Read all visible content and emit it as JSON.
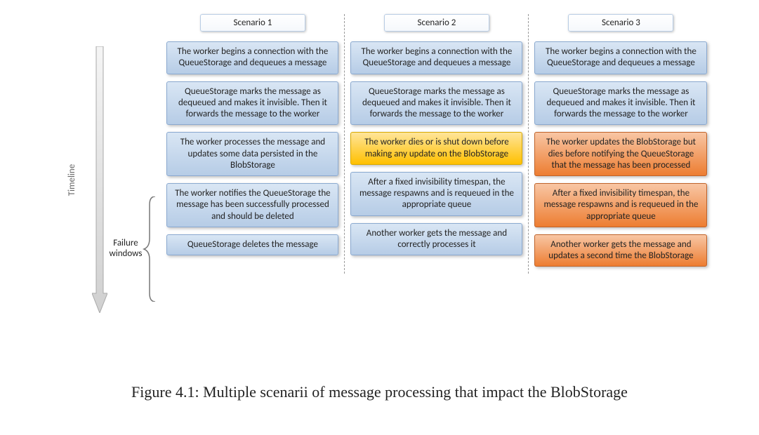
{
  "type": "flowchart",
  "timeline_label": "Timeline",
  "failure_label_line1": "Failure",
  "failure_label_line2": "windows",
  "caption": "Figure 4.1: Multiple scenarii of message processing that impact the BlobStorage",
  "font_family": "Segoe UI",
  "step_fontsize": 13,
  "caption_fontsize": 22,
  "arrow_color": "#d0d0d0",
  "arrow_stroke": "#a8a8a8",
  "divider_color": "#999999",
  "box_shadow": "2px 2px 4px rgba(0,0,0,0.25)",
  "colors": {
    "blue_top": "#d9e6f4",
    "blue_bottom": "#b6cce6",
    "blue_border": "#8aa9d0",
    "yellow_top": "#ffe59a",
    "yellow_bottom": "#ffc000",
    "yellow_border": "#d8a900",
    "orange_top": "#f8c6a4",
    "orange_bottom": "#ed7d31",
    "orange_border": "#c0632a",
    "header_bg_top": "#ffffff",
    "header_bg_bottom": "#f5f8fc",
    "header_border": "#b9cde5"
  },
  "columns": [
    {
      "header": "Scenario 1",
      "steps": [
        {
          "text": "The worker begins a connection with the QueueStorage and dequeues a message",
          "style": "blue"
        },
        {
          "text": "QueueStorage marks the message as dequeued and makes it invisible. Then it forwards the message to the worker",
          "style": "blue"
        },
        {
          "text": "The worker processes the message and updates some data persisted in the BlobStorage",
          "style": "blue"
        },
        {
          "text": "The worker notifies the QueueStorage the message has been successfully processed and should be deleted",
          "style": "blue"
        },
        {
          "text": "QueueStorage deletes the message",
          "style": "blue"
        }
      ]
    },
    {
      "header": "Scenario 2",
      "steps": [
        {
          "text": "The worker begins a connection with the QueueStorage and dequeues a message",
          "style": "blue"
        },
        {
          "text": "QueueStorage marks the message as dequeued and makes it invisible. Then it forwards the message to the worker",
          "style": "blue"
        },
        {
          "text": "The worker dies or is shut down before making any update on the BlobStorage",
          "style": "yellow"
        },
        {
          "text": "After a fixed invisibility timespan, the message respawns and is requeued in the appropriate queue",
          "style": "blue"
        },
        {
          "text": "Another worker gets the message and correctly processes it",
          "style": "blue"
        }
      ]
    },
    {
      "header": "Scenario 3",
      "steps": [
        {
          "text": "The worker begins a connection with the QueueStorage and dequeues a message",
          "style": "blue"
        },
        {
          "text": "QueueStorage marks the message as dequeued and makes it invisible. Then it forwards the message to the worker",
          "style": "blue"
        },
        {
          "text": "The worker updates the BlobStorage but dies before notifying the QueueStorage that the message has been processed",
          "style": "orange"
        },
        {
          "text": "After a fixed invisibility timespan, the message respawns and is requeued in the appropriate queue",
          "style": "orange"
        },
        {
          "text": "Another worker gets the message and updates a second time the BlobStorage",
          "style": "orange"
        }
      ]
    }
  ]
}
